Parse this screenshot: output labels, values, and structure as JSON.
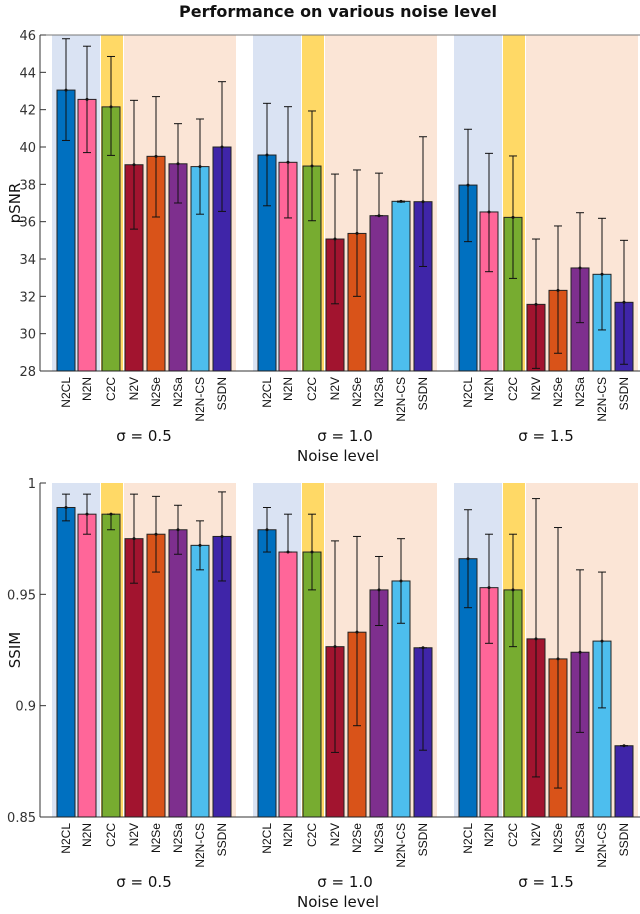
{
  "chart_data": [
    {
      "type": "bar",
      "title": "Performance on various noise level",
      "ylabel": "pSNR",
      "xlabel": "Noise level",
      "ylim": [
        28,
        46
      ],
      "yticks": [
        28,
        30,
        32,
        34,
        36,
        38,
        40,
        42,
        44,
        46
      ],
      "categories": [
        "N2CL",
        "N2N",
        "C2C",
        "N2V",
        "N2Se",
        "N2Sa",
        "N2N-CS",
        "SSDN"
      ],
      "groups": [
        {
          "label": "σ = 0.5",
          "values": [
            43.05,
            42.55,
            42.15,
            39.05,
            39.5,
            39.1,
            38.95,
            40.0
          ],
          "err_low": [
            40.35,
            39.7,
            39.55,
            35.6,
            36.25,
            37.0,
            36.4,
            36.55
          ],
          "err_high": [
            45.8,
            45.4,
            44.85,
            42.5,
            42.7,
            41.25,
            41.5,
            43.5
          ]
        },
        {
          "label": "σ = 1.0",
          "values": [
            39.57,
            39.18,
            38.98,
            35.07,
            35.37,
            36.32,
            37.09,
            37.07
          ],
          "err_low": [
            36.85,
            36.2,
            36.05,
            31.6,
            32.0,
            36.32,
            37.05,
            33.6
          ],
          "err_high": [
            42.34,
            42.16,
            41.93,
            38.55,
            38.77,
            38.6,
            37.1,
            40.55
          ]
        },
        {
          "label": "σ = 1.5",
          "values": [
            37.96,
            36.52,
            36.23,
            31.57,
            32.32,
            33.52,
            33.18,
            31.68
          ],
          "err_low": [
            34.93,
            33.32,
            32.96,
            28.14,
            28.95,
            30.59,
            30.2,
            28.36
          ],
          "err_high": [
            40.95,
            39.66,
            39.52,
            35.07,
            35.77,
            36.48,
            36.18,
            35.0
          ]
        }
      ]
    },
    {
      "type": "bar",
      "ylabel": "SSIM",
      "xlabel": "Noise level",
      "ylim": [
        0.85,
        1.0
      ],
      "yticks": [
        "0.85",
        "0.9",
        "0.95",
        "1"
      ],
      "categories": [
        "N2CL",
        "N2N",
        "C2C",
        "N2V",
        "N2Se",
        "N2Sa",
        "N2N-CS",
        "SSDN"
      ],
      "groups": [
        {
          "label": "σ = 0.5",
          "values": [
            0.989,
            0.986,
            0.986,
            0.975,
            0.977,
            0.979,
            0.972,
            0.976
          ],
          "err_low": [
            0.983,
            0.977,
            0.979,
            0.955,
            0.96,
            0.968,
            0.961,
            0.956
          ],
          "err_high": [
            0.995,
            0.995,
            0.986,
            0.995,
            0.994,
            0.99,
            0.983,
            0.996
          ]
        },
        {
          "label": "σ = 1.0",
          "values": [
            0.979,
            0.969,
            0.969,
            0.9265,
            0.933,
            0.952,
            0.956,
            0.926
          ],
          "err_low": [
            0.969,
            0.969,
            0.952,
            0.879,
            0.891,
            0.936,
            0.937,
            0.88
          ],
          "err_high": [
            0.989,
            0.986,
            0.986,
            0.974,
            0.976,
            0.967,
            0.975,
            0.926
          ]
        },
        {
          "label": "σ = 1.5",
          "values": [
            0.966,
            0.953,
            0.952,
            0.93,
            0.921,
            0.924,
            0.929,
            0.882
          ],
          "err_low": [
            0.944,
            0.928,
            0.9265,
            0.868,
            0.863,
            0.888,
            0.899,
            0.882
          ],
          "err_high": [
            0.988,
            0.977,
            0.977,
            0.993,
            0.98,
            0.961,
            0.96,
            0.882
          ]
        }
      ]
    }
  ],
  "colors": {
    "bars": [
      "#0070c0",
      "#ff6699",
      "#77ac30",
      "#a2142f",
      "#d95319",
      "#7e2f8e",
      "#4dbeee",
      "#3f25a8"
    ],
    "background_supervised": "#dae3f3",
    "background_c2c": "#ffd966",
    "background_self": "#fbe5d6"
  }
}
